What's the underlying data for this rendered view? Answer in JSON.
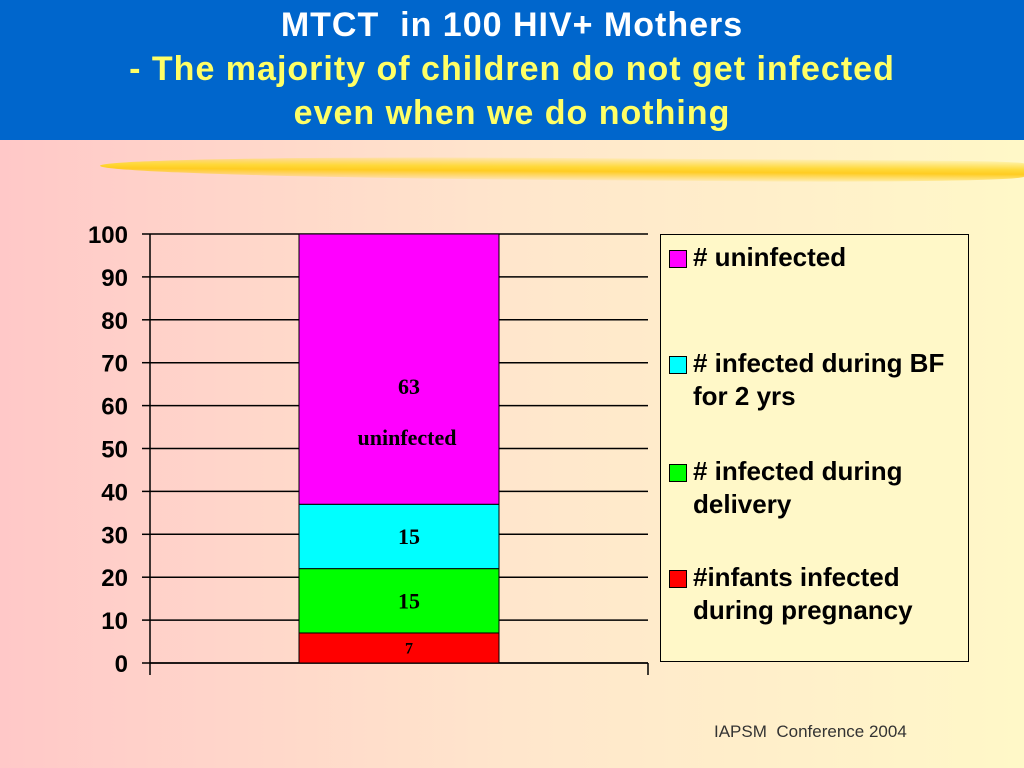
{
  "chart_data": {
    "type": "stacked_bar",
    "title": "MTCT  in 100 HIV+ Mothers",
    "subtitle": "- The majority of children do not get infected even when we do nothing",
    "categories": [
      null
    ],
    "series": [
      {
        "name": "#infants infected during pregnancy",
        "color": "#ff0000",
        "values": [
          7
        ]
      },
      {
        "name": "# infected during delivery",
        "color": "#00ff00",
        "values": [
          15
        ]
      },
      {
        "name": "# infected during BF for 2 yrs",
        "color": "#00ffff",
        "values": [
          15
        ]
      },
      {
        "name": "# uninfected",
        "color": "#ff00ff",
        "values": [
          63
        ]
      }
    ],
    "annotation": "uninfected",
    "ylim": [
      0,
      100
    ],
    "yticks": [
      0,
      10,
      20,
      30,
      40,
      50,
      60,
      70,
      80,
      90,
      100
    ],
    "grid": true,
    "legend": "right",
    "footer": "IAPSM  Conference 2004"
  }
}
